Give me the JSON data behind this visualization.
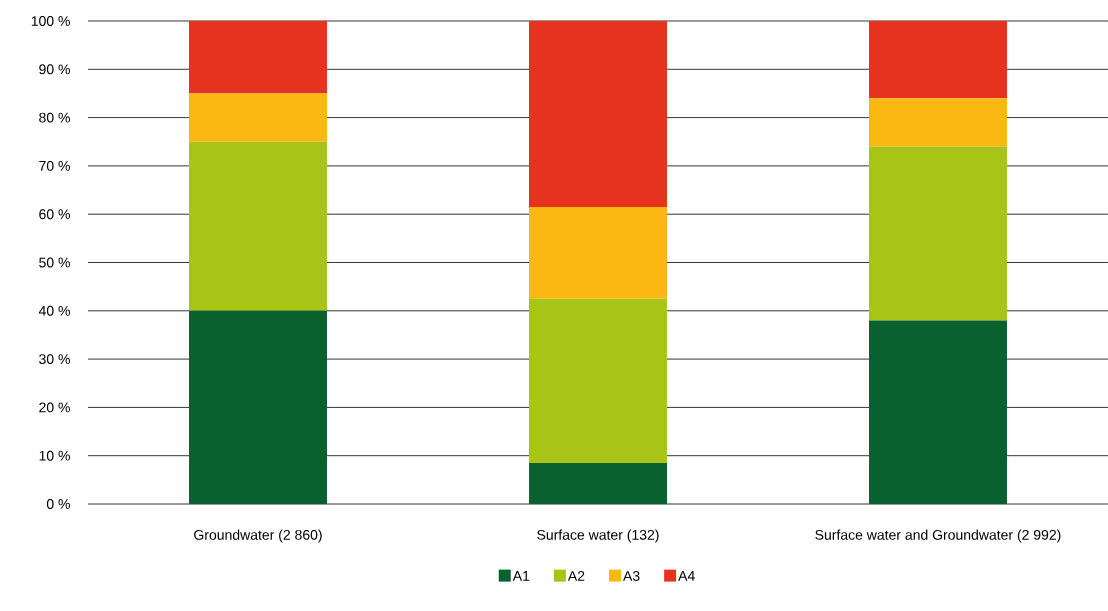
{
  "chart_data": {
    "type": "bar",
    "stacked": true,
    "categories": [
      "Groundwater (2 860)",
      "Surface water (132)",
      "Surface water and Groundwater (2 992)"
    ],
    "series": [
      {
        "name": "A1",
        "color": "#0a6130",
        "values": [
          40,
          8.5,
          38
        ]
      },
      {
        "name": "A2",
        "color": "#a7c417",
        "values": [
          35,
          34,
          36
        ]
      },
      {
        "name": "A3",
        "color": "#fbb813",
        "values": [
          10,
          19,
          10
        ]
      },
      {
        "name": "A4",
        "color": "#e63320",
        "values": [
          15,
          38.5,
          16
        ]
      }
    ],
    "ylim": [
      0,
      100
    ],
    "yticks": [
      {
        "value": 0,
        "label": "0 %"
      },
      {
        "value": 10,
        "label": "10 %"
      },
      {
        "value": 20,
        "label": "20 %"
      },
      {
        "value": 30,
        "label": "30 %"
      },
      {
        "value": 40,
        "label": "40 %"
      },
      {
        "value": 50,
        "label": "50 %"
      },
      {
        "value": 60,
        "label": "60 %"
      },
      {
        "value": 70,
        "label": "70 %"
      },
      {
        "value": 80,
        "label": "80 %"
      },
      {
        "value": 90,
        "label": "90 %"
      },
      {
        "value": 100,
        "label": "100 %"
      }
    ],
    "grid": "y",
    "legend": "bottom"
  }
}
